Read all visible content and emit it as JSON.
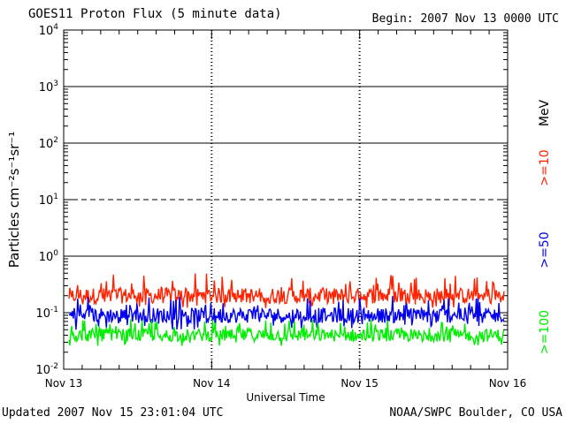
{
  "header": {
    "title": "GOES11 Proton Flux (5 minute data)",
    "begin": "Begin: 2007 Nov 13 0000 UTC"
  },
  "footer": {
    "updated": "Updated 2007 Nov 15 23:01:04 UTC",
    "credit": "NOAA/SWPC Boulder, CO USA"
  },
  "chart_data": {
    "type": "line",
    "title": "GOES11 Proton Flux (5 minute data)",
    "xlabel": "Universal Time",
    "ylabel": "Particles cm⁻²s⁻¹sr⁻¹",
    "yscale": "log",
    "ylim": [
      0.01,
      10000
    ],
    "y_ticks": [
      {
        "base": "10",
        "exp": "-2"
      },
      {
        "base": "10",
        "exp": "-1"
      },
      {
        "base": "10",
        "exp": "0"
      },
      {
        "base": "10",
        "exp": "1"
      },
      {
        "base": "10",
        "exp": "2"
      },
      {
        "base": "10",
        "exp": "3"
      },
      {
        "base": "10",
        "exp": "4"
      }
    ],
    "x_ticks": [
      "Nov 13",
      "Nov 14",
      "Nov 15",
      "Nov 16"
    ],
    "xlim": [
      "2007-11-13T00:00",
      "2007-11-16T00:00"
    ],
    "thresholds": [
      1,
      10,
      100,
      1000
    ],
    "threshold_dashed": [
      10
    ],
    "unit_label": "MeV",
    "series": [
      {
        "name": ">=10",
        "color": "#ff2200",
        "typical": 0.2,
        "min": 0.12,
        "max": 0.5
      },
      {
        "name": ">=50",
        "color": "#0000ee",
        "typical": 0.09,
        "min": 0.05,
        "max": 0.2
      },
      {
        "name": ">=100",
        "color": "#00ee00",
        "typical": 0.04,
        "min": 0.025,
        "max": 0.08
      }
    ]
  }
}
